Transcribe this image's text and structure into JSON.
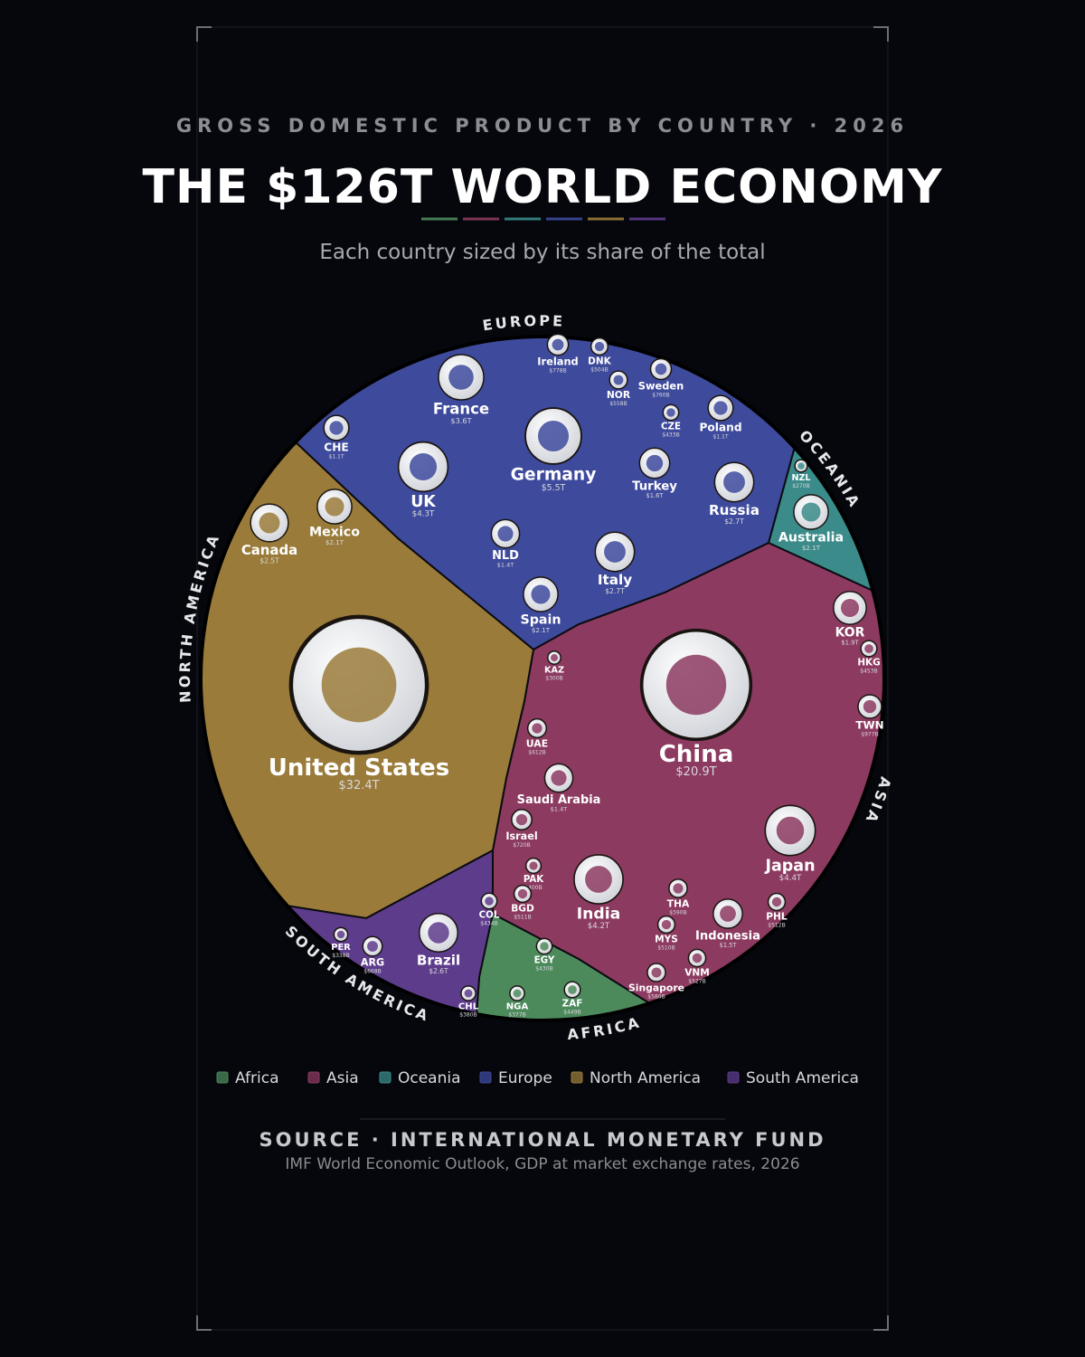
{
  "chart_data": {
    "type": "voronoi-treemap",
    "kicker": "GROSS DOMESTIC PRODUCT BY COUNTRY · 2026",
    "title": "THE $126T WORLD ECONOMY",
    "subtitle": "Each country sized by its share of the total",
    "source": "SOURCE · INTERNATIONAL MONETARY FUND",
    "source_note": "IMF World Economic Outlook, GDP at market exchange rates, 2026",
    "series": [
      {
        "name": "Africa",
        "region_label": "AFRICA",
        "color": "#4c8a5c",
        "categories": [
          "EGY",
          "ZAF",
          "NGA"
        ],
        "values": [
          0.43,
          0.449,
          0.377
        ],
        "value_labels": [
          "$430B",
          "$449B",
          "$377B"
        ]
      },
      {
        "name": "Asia",
        "region_label": "ASIA",
        "color": "#8c3a60",
        "categories": [
          "China",
          "Japan",
          "India",
          "KOR",
          "Indonesia",
          "Saudi Arabia",
          "TWN",
          "UAE",
          "Israel",
          "THA",
          "HKG",
          "PHL",
          "MYS",
          "Singapore",
          "VNM",
          "KAZ",
          "PAK",
          "BGD"
        ],
        "values": [
          20.9,
          4.4,
          4.2,
          1.9,
          1.5,
          1.4,
          0.977,
          0.612,
          0.72,
          0.59,
          0.453,
          0.512,
          0.51,
          0.58,
          0.527,
          0.3,
          0.4,
          0.511
        ],
        "value_labels": [
          "$20.9T",
          "$4.4T",
          "$4.2T",
          "$1.9T",
          "$1.5T",
          "$1.4T",
          "$977B",
          "$612B",
          "$720B",
          "$590B",
          "$453B",
          "$512B",
          "$510B",
          "$580B",
          "$527B",
          "$300B",
          "$400B",
          "$511B"
        ]
      },
      {
        "name": "Oceania",
        "region_label": "OCEANIA",
        "color": "#3a8b8a",
        "categories": [
          "Australia",
          "NZL"
        ],
        "values": [
          2.1,
          0.27
        ],
        "value_labels": [
          "$2.1T",
          "$270B"
        ]
      },
      {
        "name": "Europe",
        "region_label": "EUROPE",
        "color": "#3e4a9c",
        "categories": [
          "Germany",
          "UK",
          "France",
          "Italy",
          "Russia",
          "Spain",
          "Turkey",
          "Poland",
          "NLD",
          "CHE",
          "Ireland",
          "Sweden",
          "NOR",
          "DNK",
          "CZE"
        ],
        "values": [
          5.5,
          4.3,
          3.6,
          2.7,
          2.7,
          2.1,
          1.6,
          1.1,
          1.4,
          1.1,
          0.778,
          0.76,
          0.558,
          0.504,
          0.433
        ],
        "value_labels": [
          "$5.5T",
          "$4.3T",
          "$3.6T",
          "$2.7T",
          "$2.7T",
          "$2.1T",
          "$1.6T",
          "$1.1T",
          "$1.4T",
          "$1.1T",
          "$778B",
          "$760B",
          "$558B",
          "$504B",
          "$433B"
        ]
      },
      {
        "name": "North America",
        "region_label": "NORTH AMERICA",
        "color": "#9a7b3a",
        "categories": [
          "United States",
          "Canada",
          "Mexico"
        ],
        "values": [
          32.4,
          2.5,
          2.1
        ],
        "value_labels": [
          "$32.4T",
          "$2.5T",
          "$2.1T"
        ]
      },
      {
        "name": "South America",
        "region_label": "SOUTH AMERICA",
        "color": "#5e3c8c",
        "categories": [
          "Brazil",
          "ARG",
          "COL",
          "CHL",
          "PER"
        ],
        "values": [
          2.6,
          0.668,
          0.434,
          0.38,
          0.338
        ],
        "value_labels": [
          "$2.6T",
          "$668B",
          "$434B",
          "$380B",
          "$338B"
        ]
      }
    ]
  }
}
